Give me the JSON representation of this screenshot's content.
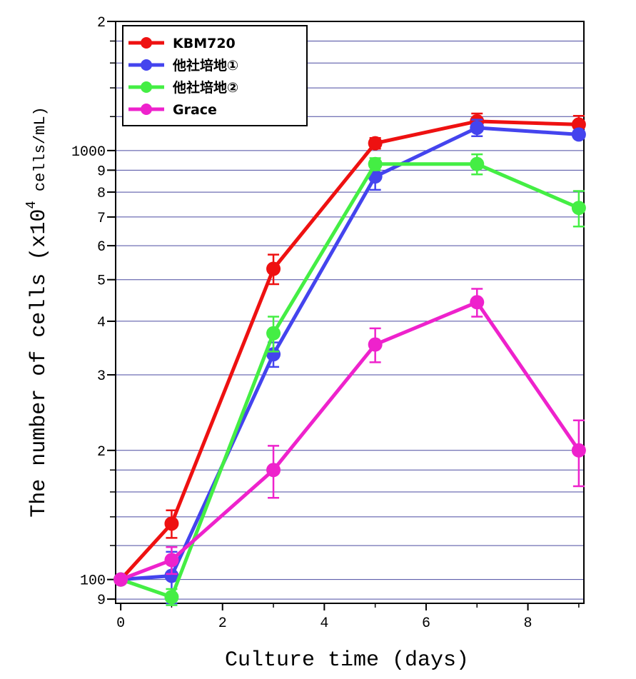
{
  "chart_data": {
    "type": "line",
    "title": "",
    "xlabel": "Culture time (days)",
    "ylabel_main": "The number of cells (x10",
    "ylabel_sup": "4",
    "ylabel_tail": " cells/mL)",
    "x_scale": "linear",
    "y_scale": "log",
    "xlim": [
      -0.1,
      9.1
    ],
    "ylim": [
      88,
      2000
    ],
    "x_ticks": [
      0,
      2,
      4,
      6,
      8
    ],
    "x_tick_labels": [
      "0",
      "2",
      "4",
      "6",
      "8"
    ],
    "y_labeled_ticks": [
      {
        "value": 90,
        "label": "9"
      },
      {
        "value": 100,
        "label": "100"
      },
      {
        "value": 200,
        "label": "2"
      },
      {
        "value": 300,
        "label": "3"
      },
      {
        "value": 400,
        "label": "4"
      },
      {
        "value": 500,
        "label": "5"
      },
      {
        "value": 600,
        "label": "6"
      },
      {
        "value": 700,
        "label": "7"
      },
      {
        "value": 800,
        "label": "8"
      },
      {
        "value": 900,
        "label": "9"
      },
      {
        "value": 1000,
        "label": "1000"
      },
      {
        "value": 2000,
        "label": "2"
      }
    ],
    "grid_lines_y": [
      90,
      100,
      120,
      140,
      160,
      180,
      200,
      300,
      400,
      500,
      600,
      700,
      800,
      900,
      1000,
      1200,
      1400,
      1600,
      1800
    ],
    "grid": "horizontal",
    "legend_position": "top-left",
    "series": [
      {
        "name": "KBM720",
        "color": "#ee1111",
        "points": [
          {
            "x": 0,
            "y": 100,
            "err": 0
          },
          {
            "x": 1,
            "y": 135,
            "err": 10
          },
          {
            "x": 3,
            "y": 530,
            "err": 42
          },
          {
            "x": 5,
            "y": 1040,
            "err": 30
          },
          {
            "x": 7,
            "y": 1170,
            "err": 50
          },
          {
            "x": 9,
            "y": 1150,
            "err": 55
          }
        ]
      },
      {
        "name": "他社培地①",
        "color": "#4444ee",
        "points": [
          {
            "x": 0,
            "y": 100,
            "err": 0
          },
          {
            "x": 1,
            "y": 102,
            "err": 14
          },
          {
            "x": 3,
            "y": 335,
            "err": 22
          },
          {
            "x": 5,
            "y": 870,
            "err": 60
          },
          {
            "x": 7,
            "y": 1130,
            "err": 50
          },
          {
            "x": 9,
            "y": 1090,
            "err": 0
          }
        ]
      },
      {
        "name": "他社培地②",
        "color": "#44ee44",
        "points": [
          {
            "x": 0,
            "y": 100,
            "err": 0
          },
          {
            "x": 1,
            "y": 91,
            "err": 4
          },
          {
            "x": 3,
            "y": 375,
            "err": 35
          },
          {
            "x": 5,
            "y": 930,
            "err": 30
          },
          {
            "x": 7,
            "y": 930,
            "err": 50
          },
          {
            "x": 9,
            "y": 735,
            "err": 70
          }
        ]
      },
      {
        "name": "Grace",
        "color": "#ee22cc",
        "points": [
          {
            "x": 0,
            "y": 100,
            "err": 0
          },
          {
            "x": 1,
            "y": 111,
            "err": 8
          },
          {
            "x": 3,
            "y": 180,
            "err": 25
          },
          {
            "x": 5,
            "y": 353,
            "err": 32
          },
          {
            "x": 7,
            "y": 443,
            "err": 33
          },
          {
            "x": 9,
            "y": 200,
            "err": 35
          }
        ]
      }
    ]
  }
}
